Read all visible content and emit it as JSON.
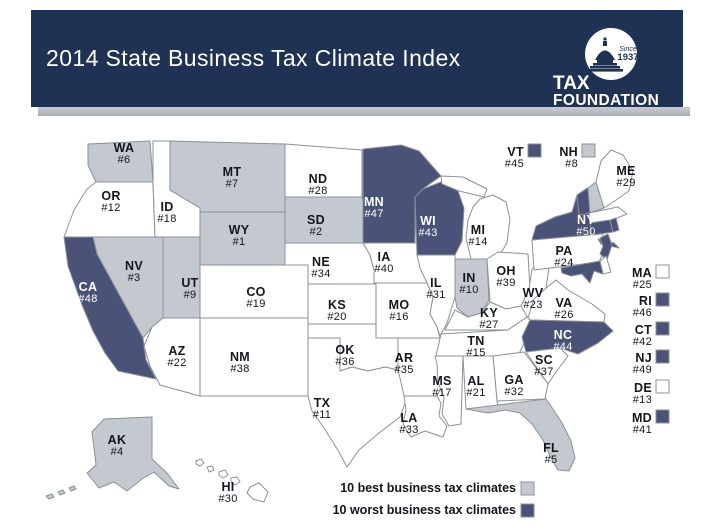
{
  "header": {
    "title": "2014 State Business Tax Climate Index",
    "logo": {
      "word1": "TAX",
      "word2": "FOUNDATION",
      "badge_line1": "Since",
      "badge_line2": "1937"
    }
  },
  "colors": {
    "best": "#c4c8cf",
    "worst": "#4a5377",
    "other": "#ffffff",
    "header_bg": "#203254",
    "border": "#8b9199",
    "label_dark": "#15151d",
    "label_light": "#ffffff"
  },
  "legend": [
    {
      "category": "best",
      "label": "10 best business tax climates"
    },
    {
      "category": "worst",
      "label": "10 worst business tax climates"
    }
  ],
  "map": {
    "rank_prefix": "#",
    "states": [
      {
        "code": "WY",
        "rank": 1,
        "category": "best"
      },
      {
        "code": "SD",
        "rank": 2,
        "category": "best"
      },
      {
        "code": "NV",
        "rank": 3,
        "category": "best"
      },
      {
        "code": "AK",
        "rank": 4,
        "category": "best"
      },
      {
        "code": "FL",
        "rank": 5,
        "category": "best"
      },
      {
        "code": "WA",
        "rank": 6,
        "category": "best"
      },
      {
        "code": "MT",
        "rank": 7,
        "category": "best"
      },
      {
        "code": "NH",
        "rank": 8,
        "category": "best"
      },
      {
        "code": "UT",
        "rank": 9,
        "category": "best"
      },
      {
        "code": "IN",
        "rank": 10,
        "category": "best"
      },
      {
        "code": "TX",
        "rank": 11,
        "category": "other"
      },
      {
        "code": "OR",
        "rank": 12,
        "category": "other"
      },
      {
        "code": "DE",
        "rank": 13,
        "category": "other"
      },
      {
        "code": "MI",
        "rank": 14,
        "category": "other"
      },
      {
        "code": "TN",
        "rank": 15,
        "category": "other"
      },
      {
        "code": "MO",
        "rank": 16,
        "category": "other"
      },
      {
        "code": "MS",
        "rank": 17,
        "category": "other"
      },
      {
        "code": "ID",
        "rank": 18,
        "category": "other"
      },
      {
        "code": "CO",
        "rank": 19,
        "category": "other"
      },
      {
        "code": "KS",
        "rank": 20,
        "category": "other"
      },
      {
        "code": "AL",
        "rank": 21,
        "category": "other"
      },
      {
        "code": "AZ",
        "rank": 22,
        "category": "other"
      },
      {
        "code": "WV",
        "rank": 23,
        "category": "other"
      },
      {
        "code": "PA",
        "rank": 24,
        "category": "other"
      },
      {
        "code": "MA",
        "rank": 25,
        "category": "other"
      },
      {
        "code": "VA",
        "rank": 26,
        "category": "other"
      },
      {
        "code": "KY",
        "rank": 27,
        "category": "other"
      },
      {
        "code": "ND",
        "rank": 28,
        "category": "other"
      },
      {
        "code": "ME",
        "rank": 29,
        "category": "other"
      },
      {
        "code": "HI",
        "rank": 30,
        "category": "other"
      },
      {
        "code": "IL",
        "rank": 31,
        "category": "other"
      },
      {
        "code": "GA",
        "rank": 32,
        "category": "other"
      },
      {
        "code": "LA",
        "rank": 33,
        "category": "other"
      },
      {
        "code": "NE",
        "rank": 34,
        "category": "other"
      },
      {
        "code": "AR",
        "rank": 35,
        "category": "other"
      },
      {
        "code": "OK",
        "rank": 36,
        "category": "other"
      },
      {
        "code": "SC",
        "rank": 37,
        "category": "other"
      },
      {
        "code": "NM",
        "rank": 38,
        "category": "other"
      },
      {
        "code": "OH",
        "rank": 39,
        "category": "other"
      },
      {
        "code": "IA",
        "rank": 40,
        "category": "other"
      },
      {
        "code": "MD",
        "rank": 41,
        "category": "worst"
      },
      {
        "code": "CT",
        "rank": 42,
        "category": "worst"
      },
      {
        "code": "WI",
        "rank": 43,
        "category": "worst"
      },
      {
        "code": "NC",
        "rank": 44,
        "category": "worst"
      },
      {
        "code": "VT",
        "rank": 45,
        "category": "worst"
      },
      {
        "code": "RI",
        "rank": 46,
        "category": "worst"
      },
      {
        "code": "MN",
        "rank": 47,
        "category": "worst"
      },
      {
        "code": "CA",
        "rank": 48,
        "category": "worst"
      },
      {
        "code": "NJ",
        "rank": 49,
        "category": "worst"
      },
      {
        "code": "NY",
        "rank": 50,
        "category": "worst"
      }
    ]
  }
}
